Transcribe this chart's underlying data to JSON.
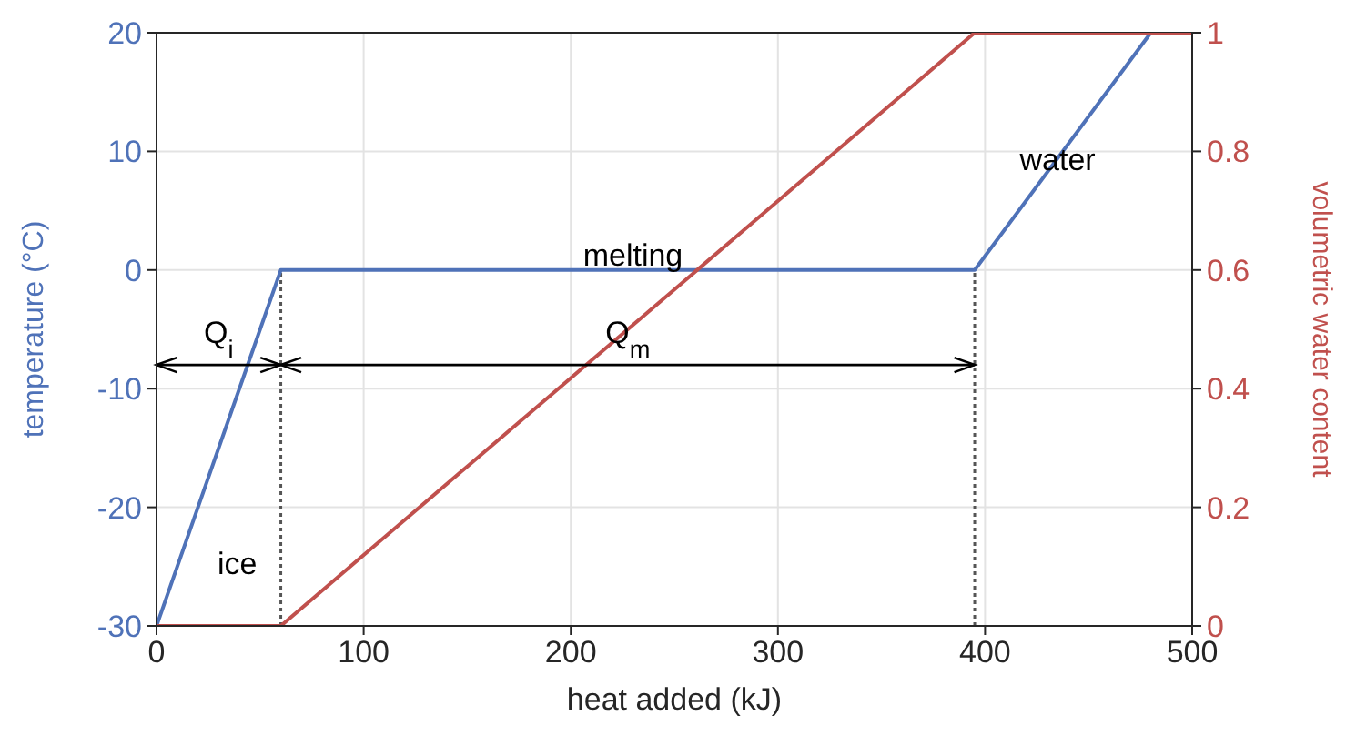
{
  "chart_data": {
    "type": "line",
    "xlabel": "heat added (kJ)",
    "ylabel": "temperature (°C)",
    "y2label": "volumetric water content",
    "xlim": [
      0,
      500
    ],
    "xticks": [
      0,
      100,
      200,
      300,
      400,
      500
    ],
    "ylim": [
      -30,
      20
    ],
    "yticks": [
      -30,
      -20,
      -10,
      0,
      10,
      20
    ],
    "y2lim": [
      0,
      1
    ],
    "y2ticks": [
      0,
      0.2,
      0.4,
      0.6,
      0.8,
      1
    ],
    "grid": true,
    "legend": false,
    "marker": "none",
    "line_style": "solid",
    "series": [
      {
        "color": "#4f72b8",
        "x": [
          0,
          60,
          395,
          480
        ],
        "values": [
          -30,
          0,
          0,
          20
        ]
      },
      {
        "color": "#c0504d",
        "axis": "y2",
        "x": [
          0,
          60,
          395,
          500
        ],
        "values": [
          0,
          0,
          1,
          1
        ]
      }
    ],
    "ref_lines": [
      {
        "axis": "x",
        "value": 60,
        "color": "#555555",
        "line_style": "dotted"
      },
      {
        "axis": "x",
        "value": 395,
        "color": "#555555",
        "line_style": "dotted"
      }
    ],
    "annotations": [
      "Q$_{i}$",
      "Q$_{m}$",
      "ice",
      "melting",
      "water"
    ]
  }
}
